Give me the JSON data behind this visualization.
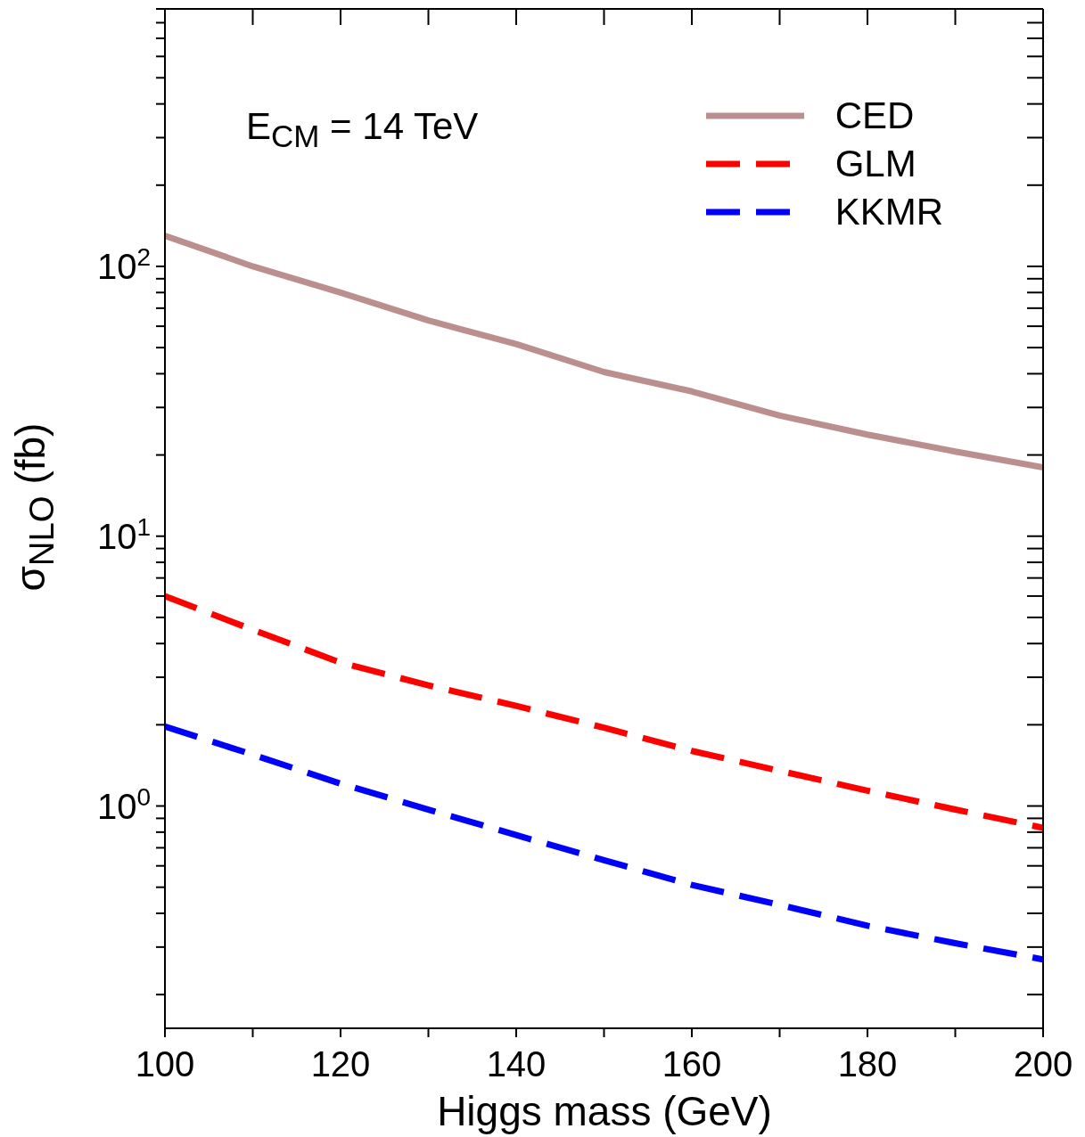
{
  "chart_data": {
    "type": "line",
    "xlabel": "Higgs mass (GeV)",
    "ylabel": "σ$_{NLO}$ (fb)",
    "annotations": [
      "E$_{CM}$ = 14 TeV"
    ],
    "x": [
      100,
      110,
      120,
      130,
      140,
      150,
      160,
      170,
      180,
      190,
      200
    ],
    "log": "y",
    "grid": false,
    "legend": "top right",
    "marker": "none",
    "xlim": [
      100,
      200
    ],
    "xticks": [
      100,
      {
        "value": 110,
        "label": null
      },
      120,
      {
        "value": 130,
        "label": null
      },
      140,
      {
        "value": 150,
        "label": null
      },
      160,
      {
        "value": 170,
        "label": null
      },
      180,
      {
        "value": 190,
        "label": null
      },
      200
    ],
    "ylim": [
      0.15,
      900
    ],
    "yticks": [
      {
        "value": 0.2,
        "label": null
      },
      {
        "value": 0.3,
        "label": null
      },
      {
        "value": 0.4,
        "label": null
      },
      {
        "value": 0.5,
        "label": null
      },
      {
        "value": 0.6,
        "label": null
      },
      {
        "value": 0.7,
        "label": null
      },
      {
        "value": 0.8,
        "label": null
      },
      {
        "value": 0.9,
        "label": null
      },
      {
        "value": 1,
        "label": "10$^{0}$"
      },
      {
        "value": 2,
        "label": null
      },
      {
        "value": 3,
        "label": null
      },
      {
        "value": 4,
        "label": null
      },
      {
        "value": 5,
        "label": null
      },
      {
        "value": 6,
        "label": null
      },
      {
        "value": 7,
        "label": null
      },
      {
        "value": 8,
        "label": null
      },
      {
        "value": 9,
        "label": null
      },
      {
        "value": 10,
        "label": "10$^{1}$"
      },
      {
        "value": 20,
        "label": null
      },
      {
        "value": 30,
        "label": null
      },
      {
        "value": 40,
        "label": null
      },
      {
        "value": 50,
        "label": null
      },
      {
        "value": 60,
        "label": null
      },
      {
        "value": 70,
        "label": null
      },
      {
        "value": 80,
        "label": null
      },
      {
        "value": 90,
        "label": null
      },
      {
        "value": 100,
        "label": "10$^{2}$"
      },
      {
        "value": 200,
        "label": null
      },
      {
        "value": 300,
        "label": null
      },
      {
        "value": 400,
        "label": null
      },
      {
        "value": 500,
        "label": null
      },
      {
        "value": 600,
        "label": null
      },
      {
        "value": 700,
        "label": null
      },
      {
        "value": 800,
        "label": null
      },
      {
        "value": 900,
        "label": null
      }
    ],
    "series": [
      {
        "name": "CED",
        "color": "#bc8f8f",
        "line_style": "solid",
        "values": [
          130,
          100,
          80,
          63,
          51.5,
          40.6,
          34.4,
          28,
          23.8,
          20.6,
          18
        ]
      },
      {
        "name": "GLM",
        "color": "#ff0000",
        "line_style": "dashed",
        "values": [
          6.0,
          4.5,
          3.4,
          2.8,
          2.35,
          1.95,
          1.6,
          1.35,
          1.14,
          0.97,
          0.83
        ]
      },
      {
        "name": "KKMR",
        "color": "#0000ff",
        "line_style": "dashed",
        "values": [
          1.97,
          1.55,
          1.21,
          0.97,
          0.78,
          0.63,
          0.51,
          0.43,
          0.36,
          0.31,
          0.27
        ]
      }
    ]
  }
}
